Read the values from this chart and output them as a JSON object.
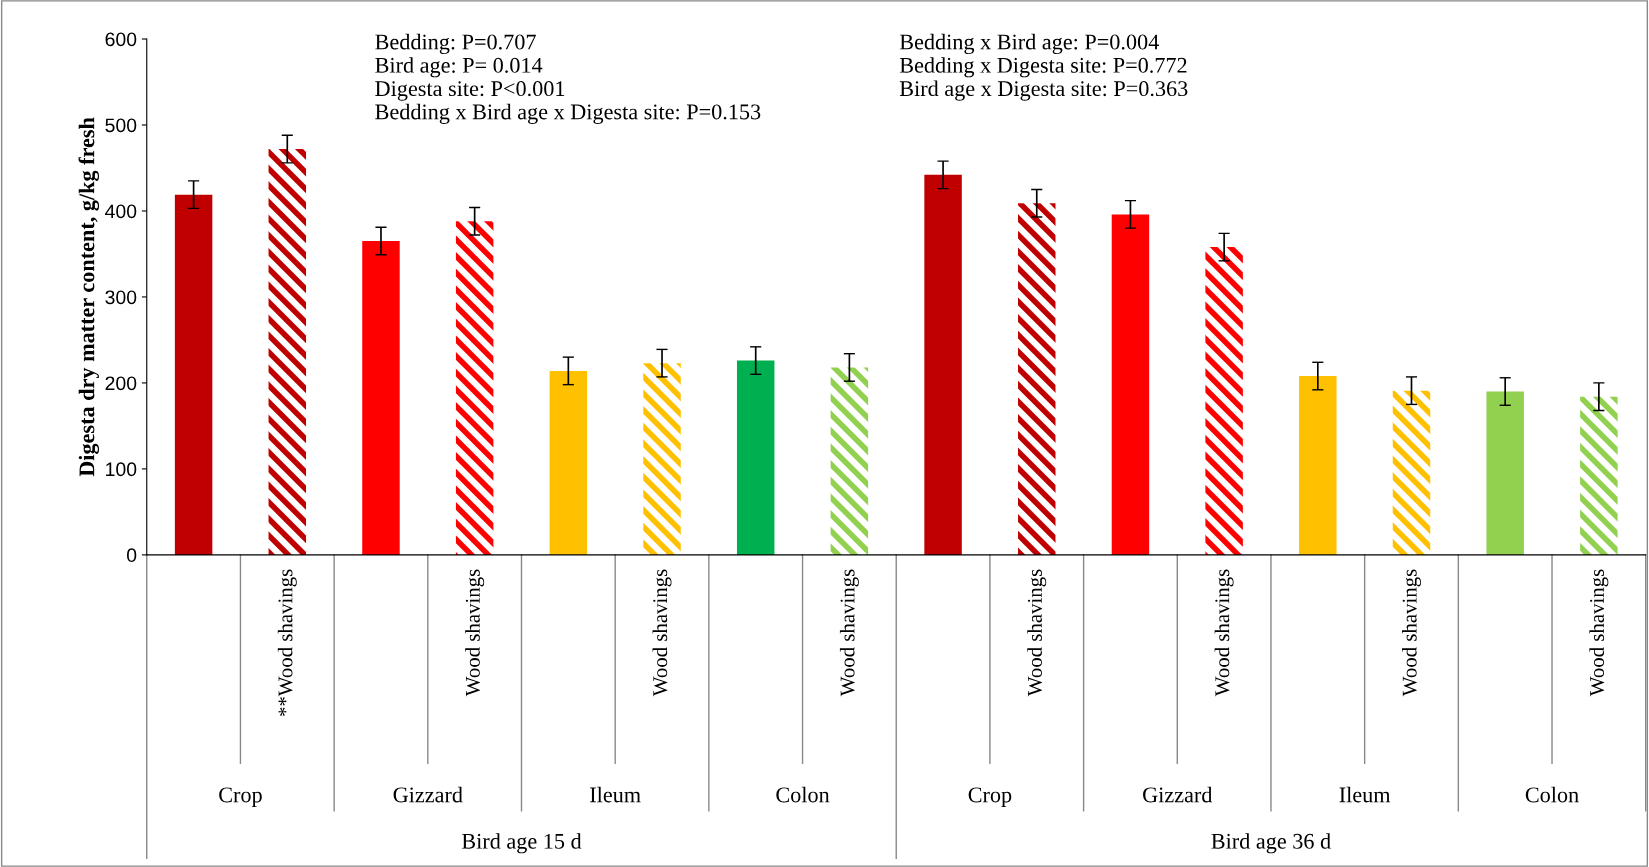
{
  "chart_data": {
    "type": "bar",
    "ylabel": "Digesta dry matter content, g/kg fresh",
    "categories": [
      null,
      "**Wood shavings",
      null,
      "Wood shavings",
      null,
      "Wood shavings",
      null,
      "Wood shavings",
      null,
      "Wood shavings",
      null,
      "Wood shavings",
      null,
      "Wood shavings",
      null,
      "Wood shavings"
    ],
    "values": [
      419,
      472,
      365,
      388,
      214,
      223,
      226,
      218,
      442,
      409,
      396,
      358,
      208,
      191,
      190,
      184
    ],
    "errors": [
      16,
      16,
      16,
      16,
      16,
      16,
      16,
      16,
      16,
      16,
      16,
      16,
      16,
      16,
      16,
      16
    ],
    "colors": [
      "#c00000",
      "#c00000",
      "#ff0000",
      "#ff0000",
      "#ffc000",
      "#ffc000",
      "#00b050",
      "#92d050",
      "#c00000",
      "#c00000",
      "#ff0000",
      "#ff0000",
      "#ffc000",
      "#ffc000",
      "#92d050",
      "#92d050"
    ],
    "ylim": [
      0,
      600
    ],
    "yticks": [
      0,
      100,
      200,
      300,
      400,
      500,
      600
    ],
    "grid": false,
    "legend": false,
    "annotations": [
      "Bedding: P=0.707\nBird age: P= 0.014\nDigesta site: P<0.001\nBedding x Bird age x Digesta site: P=0.153",
      "Bedding x Bird age: P=0.004\nBedding x Digesta site: P=0.772\nBird age x Digesta site: P=0.363",
      "Crop",
      "Gizzard",
      "Ileum",
      "Colon",
      "Crop",
      "Gizzard",
      "Ileum",
      "Colon",
      "Bird age 15 d",
      "Bird age 36 d"
    ]
  }
}
